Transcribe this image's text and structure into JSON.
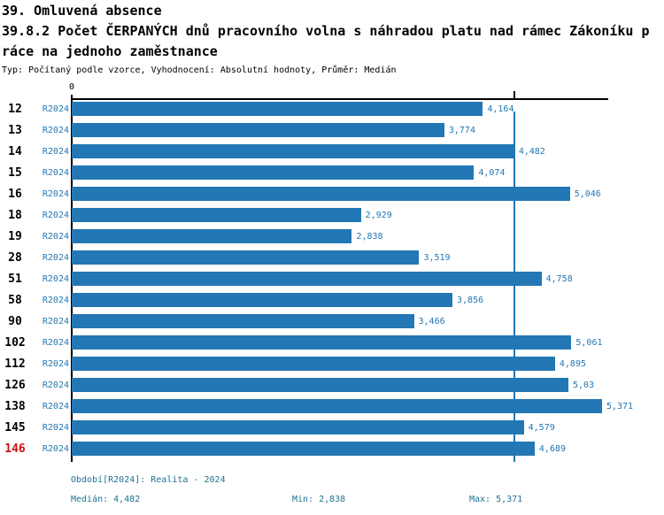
{
  "header": {
    "title_line1": "39. Omluvená absence",
    "title_line2": "39.8.2 Počet ČERPANÝCH dnů pracovního volna s náhradou platu nad rámec Zákoníku p",
    "title_line3": "ráce na jednoho zaměstnance",
    "subtitle": "Typ: Počítaný podle vzorce, Vyhodnocení: Absolutní hodnoty, Průměr: Medián"
  },
  "chart_data": {
    "type": "bar",
    "orientation": "horizontal",
    "title": "39.8.2 Počet ČERPANÝCH dnů pracovního volna s náhradou platu nad rámec Zákoníku práce na jednoho zaměstnance",
    "categories": [
      "12",
      "13",
      "14",
      "15",
      "16",
      "18",
      "19",
      "28",
      "51",
      "58",
      "90",
      "102",
      "112",
      "126",
      "138",
      "145",
      "146"
    ],
    "series": [
      {
        "name": "R2024",
        "values": [
          4.164,
          3.774,
          4.482,
          4.074,
          5.046,
          2.929,
          2.838,
          3.519,
          4.758,
          3.856,
          3.466,
          5.061,
          4.895,
          5.03,
          5.371,
          4.579,
          4.689
        ]
      }
    ],
    "value_labels": [
      "4,164",
      "3,774",
      "4,482",
      "4,074",
      "5,046",
      "2,929",
      "2,838",
      "3,519",
      "4,758",
      "3,856",
      "3,466",
      "5,061",
      "4,895",
      "5,03",
      "5,371",
      "4,579",
      "4,689"
    ],
    "x_origin_label": "0",
    "xlim": [
      0,
      5.434
    ],
    "grid": false,
    "median": 4.482,
    "min": 2.838,
    "max": 5.371,
    "highlighted_category": "146",
    "median_line": true
  },
  "footer": {
    "period_label": "Období[R2024]: Realita - 2024",
    "median_label": "Medián: 4,482",
    "min_label": "Min: 2,838",
    "max_label": "Max: 5,371"
  },
  "colors": {
    "bar": "#2277b4",
    "series_label": "#2277b4",
    "value_label": "#2277b4",
    "median_line": "#2277b4",
    "row_number": "#000000",
    "highlight_red": "#cc1111",
    "footer_text": "#1d7292",
    "axis": "#000000"
  }
}
